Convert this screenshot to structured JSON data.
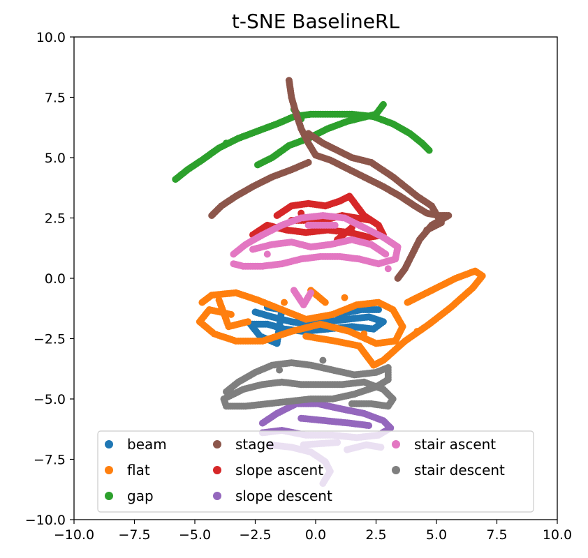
{
  "chart_data": {
    "type": "scatter",
    "title": "t-SNE BaselineRL",
    "xlabel": "",
    "ylabel": "",
    "xlim": [
      -10,
      10
    ],
    "ylim": [
      -10,
      10
    ],
    "xticks": [
      "−10.0",
      "−7.5",
      "−5.0",
      "−2.5",
      "0.0",
      "2.5",
      "5.0",
      "7.5",
      "10.0"
    ],
    "yticks": [
      "−10.0",
      "−7.5",
      "−5.0",
      "−2.5",
      "0.0",
      "2.5",
      "5.0",
      "7.5",
      "10.0"
    ],
    "grid": false,
    "legend_position": "lower center",
    "series": [
      {
        "name": "beam",
        "color": "#1f77b4",
        "points": [
          [
            -2.5,
            -1.4
          ],
          [
            -1.8,
            -1.6
          ],
          [
            -1.0,
            -1.8
          ],
          [
            -0.3,
            -1.9
          ],
          [
            0.5,
            -1.8
          ],
          [
            1.3,
            -1.7
          ],
          [
            2.2,
            -1.6
          ],
          [
            2.8,
            -1.8
          ],
          [
            2.4,
            -2.1
          ],
          [
            1.5,
            -2.0
          ],
          [
            0.5,
            -2.1
          ],
          [
            -0.5,
            -2.2
          ],
          [
            -1.3,
            -2.1
          ],
          [
            -2.0,
            -1.9
          ],
          [
            -2.7,
            -1.9
          ],
          [
            -2.3,
            -2.4
          ],
          [
            -1.6,
            -2.7
          ],
          [
            -1.4,
            -1.3
          ],
          [
            -2.0,
            -1.2
          ],
          [
            0.9,
            -1.5
          ],
          [
            1.9,
            -1.3
          ],
          [
            2.6,
            -1.3
          ]
        ]
      },
      {
        "name": "flat",
        "color": "#ff7f0e",
        "points": [
          [
            -4.7,
            -1.0
          ],
          [
            -4.3,
            -0.7
          ],
          [
            -3.3,
            -0.6
          ],
          [
            -2.4,
            -0.9
          ],
          [
            -1.4,
            -1.3
          ],
          [
            -0.4,
            -1.7
          ],
          [
            0.7,
            -1.5
          ],
          [
            1.7,
            -1.1
          ],
          [
            2.6,
            -1.0
          ],
          [
            3.2,
            -1.3
          ],
          [
            3.6,
            -2.0
          ],
          [
            3.3,
            -2.6
          ],
          [
            2.5,
            -2.7
          ],
          [
            1.4,
            -2.2
          ],
          [
            0.2,
            -1.9
          ],
          [
            -1.0,
            -2.2
          ],
          [
            -2.2,
            -2.6
          ],
          [
            -3.3,
            -2.6
          ],
          [
            -4.2,
            -2.3
          ],
          [
            -4.8,
            -1.8
          ],
          [
            -4.4,
            -1.3
          ],
          [
            -3.5,
            -1.5
          ],
          [
            -0.2,
            -0.5
          ],
          [
            0.4,
            -1.0
          ],
          [
            3.8,
            -1.0
          ],
          [
            4.8,
            -0.5
          ],
          [
            5.8,
            0.0
          ],
          [
            6.6,
            0.3
          ],
          [
            6.9,
            0.1
          ],
          [
            6.5,
            -0.4
          ],
          [
            5.6,
            -1.2
          ],
          [
            4.7,
            -1.9
          ],
          [
            3.7,
            -2.6
          ],
          [
            2.8,
            -3.4
          ],
          [
            2.4,
            -3.6
          ],
          [
            1.8,
            -2.8
          ],
          [
            0.8,
            -2.6
          ],
          [
            -0.4,
            -2.4
          ],
          [
            -1.3,
            -1.0
          ],
          [
            1.2,
            -0.8
          ],
          [
            -2.8,
            -1.8
          ],
          [
            -3.6,
            -2.0
          ],
          [
            -4.0,
            -0.9
          ],
          [
            2.0,
            -2.3
          ],
          [
            4.2,
            -2.2
          ]
        ]
      },
      {
        "name": "gap",
        "color": "#2ca02c",
        "points": [
          [
            -5.8,
            4.1
          ],
          [
            -5.3,
            4.5
          ],
          [
            -4.7,
            4.9
          ],
          [
            -4.0,
            5.4
          ],
          [
            -3.2,
            5.8
          ],
          [
            -2.4,
            6.1
          ],
          [
            -1.6,
            6.4
          ],
          [
            -0.9,
            6.7
          ],
          [
            -0.2,
            6.8
          ],
          [
            0.7,
            6.8
          ],
          [
            1.5,
            6.8
          ],
          [
            2.4,
            6.7
          ],
          [
            3.2,
            6.4
          ],
          [
            3.9,
            6.0
          ],
          [
            4.4,
            5.6
          ],
          [
            4.7,
            5.3
          ],
          [
            2.8,
            7.2
          ],
          [
            2.5,
            6.8
          ],
          [
            1.3,
            6.5
          ],
          [
            0.5,
            6.2
          ],
          [
            -0.3,
            5.8
          ],
          [
            -1.1,
            5.5
          ],
          [
            -1.8,
            5.0
          ],
          [
            -2.4,
            4.7
          ],
          [
            -0.9,
            7.0
          ],
          [
            -0.6,
            6.6
          ],
          [
            1.9,
            6.7
          ],
          [
            -3.7,
            5.6
          ]
        ]
      },
      {
        "name": "stage",
        "color": "#8c564b",
        "points": [
          [
            -1.1,
            8.2
          ],
          [
            -1.0,
            7.5
          ],
          [
            -0.8,
            6.8
          ],
          [
            -0.6,
            6.2
          ],
          [
            -0.3,
            5.6
          ],
          [
            0.0,
            5.1
          ],
          [
            0.6,
            4.9
          ],
          [
            1.2,
            4.6
          ],
          [
            2.0,
            4.2
          ],
          [
            2.8,
            3.8
          ],
          [
            3.5,
            3.4
          ],
          [
            4.1,
            3.0
          ],
          [
            4.6,
            2.7
          ],
          [
            5.1,
            2.6
          ],
          [
            5.5,
            2.6
          ],
          [
            4.8,
            2.2
          ],
          [
            4.3,
            1.6
          ],
          [
            4.0,
            1.0
          ],
          [
            3.7,
            0.4
          ],
          [
            3.4,
            0.0
          ],
          [
            -0.3,
            4.8
          ],
          [
            -1.0,
            4.5
          ],
          [
            -1.8,
            4.2
          ],
          [
            -2.6,
            3.8
          ],
          [
            -3.3,
            3.4
          ],
          [
            -3.9,
            3.0
          ],
          [
            -4.3,
            2.6
          ],
          [
            -0.3,
            6.0
          ],
          [
            0.3,
            5.6
          ],
          [
            0.9,
            5.3
          ],
          [
            1.5,
            5.0
          ],
          [
            2.3,
            4.8
          ],
          [
            3.2,
            4.2
          ],
          [
            4.2,
            3.4
          ],
          [
            4.8,
            3.0
          ],
          [
            5.2,
            2.3
          ],
          [
            4.6,
            2.0
          ]
        ]
      },
      {
        "name": "slope ascent",
        "color": "#d62728",
        "points": [
          [
            -1.6,
            2.6
          ],
          [
            -1.0,
            3.0
          ],
          [
            -0.3,
            3.1
          ],
          [
            0.4,
            3.0
          ],
          [
            1.0,
            3.2
          ],
          [
            1.4,
            3.4
          ],
          [
            1.7,
            3.0
          ],
          [
            2.0,
            2.6
          ],
          [
            2.6,
            2.2
          ],
          [
            2.8,
            1.8
          ],
          [
            2.2,
            1.7
          ],
          [
            1.4,
            1.9
          ],
          [
            0.5,
            2.0
          ],
          [
            -0.4,
            1.9
          ],
          [
            -1.2,
            2.0
          ],
          [
            -2.0,
            2.2
          ],
          [
            -2.6,
            1.8
          ],
          [
            -1.0,
            2.4
          ],
          [
            0.3,
            2.4
          ],
          [
            1.1,
            2.6
          ],
          [
            2.3,
            2.4
          ],
          [
            -0.6,
            2.7
          ],
          [
            1.5,
            2.1
          ],
          [
            0.9,
            1.6
          ]
        ]
      },
      {
        "name": "slope descent",
        "color": "#9467bd",
        "points": [
          [
            -2.2,
            -6.0
          ],
          [
            -1.6,
            -5.6
          ],
          [
            -0.8,
            -5.2
          ],
          [
            0.1,
            -5.2
          ],
          [
            1.0,
            -5.4
          ],
          [
            2.0,
            -5.6
          ],
          [
            2.8,
            -5.9
          ],
          [
            3.1,
            -6.2
          ],
          [
            2.6,
            -6.5
          ],
          [
            1.7,
            -6.6
          ],
          [
            0.7,
            -6.5
          ],
          [
            -0.4,
            -6.5
          ],
          [
            -1.4,
            -6.3
          ],
          [
            -2.2,
            -6.4
          ],
          [
            -0.6,
            -5.8
          ],
          [
            0.4,
            -5.9
          ],
          [
            1.4,
            -6.0
          ],
          [
            2.2,
            -6.1
          ],
          [
            -1.9,
            -6.9
          ],
          [
            -1.0,
            -7.0
          ],
          [
            -0.2,
            -7.2
          ],
          [
            0.4,
            -7.6
          ],
          [
            0.6,
            -8.0
          ],
          [
            0.3,
            -8.5
          ],
          [
            1.3,
            -7.1
          ],
          [
            2.1,
            -6.9
          ],
          [
            2.7,
            -7.0
          ],
          [
            -0.5,
            -6.9
          ],
          [
            0.9,
            -6.8
          ]
        ]
      },
      {
        "name": "stair ascent",
        "color": "#e377c2",
        "points": [
          [
            -3.4,
            1.0
          ],
          [
            -2.9,
            1.4
          ],
          [
            -2.2,
            1.8
          ],
          [
            -1.4,
            2.2
          ],
          [
            -0.6,
            2.5
          ],
          [
            0.3,
            2.6
          ],
          [
            1.2,
            2.5
          ],
          [
            2.0,
            2.1
          ],
          [
            2.8,
            1.7
          ],
          [
            3.4,
            1.3
          ],
          [
            3.3,
            0.8
          ],
          [
            2.6,
            0.6
          ],
          [
            1.8,
            0.8
          ],
          [
            1.0,
            0.9
          ],
          [
            0.2,
            0.9
          ],
          [
            -0.6,
            0.8
          ],
          [
            -1.4,
            0.6
          ],
          [
            -2.2,
            0.5
          ],
          [
            -3.0,
            0.5
          ],
          [
            -3.4,
            0.6
          ],
          [
            -0.9,
            -0.5
          ],
          [
            -0.5,
            -1.1
          ],
          [
            -0.2,
            -0.6
          ],
          [
            -2.6,
            1.2
          ],
          [
            -1.8,
            1.4
          ],
          [
            -1.0,
            1.5
          ],
          [
            -0.2,
            1.3
          ],
          [
            0.6,
            1.4
          ],
          [
            1.5,
            1.6
          ],
          [
            2.3,
            1.4
          ],
          [
            2.9,
            1.0
          ],
          [
            0.8,
            2.2
          ],
          [
            -0.3,
            2.2
          ],
          [
            3.0,
            0.4
          ],
          [
            -2.0,
            1.0
          ]
        ]
      },
      {
        "name": "stair descent",
        "color": "#7f7f7f",
        "points": [
          [
            -3.7,
            -4.7
          ],
          [
            -3.2,
            -4.3
          ],
          [
            -2.5,
            -3.9
          ],
          [
            -1.8,
            -3.6
          ],
          [
            -1.0,
            -3.5
          ],
          [
            -0.2,
            -3.6
          ],
          [
            0.7,
            -3.8
          ],
          [
            1.6,
            -4.0
          ],
          [
            2.5,
            -3.9
          ],
          [
            3.0,
            -3.7
          ],
          [
            3.0,
            -4.2
          ],
          [
            2.5,
            -4.5
          ],
          [
            1.6,
            -4.8
          ],
          [
            0.7,
            -5.0
          ],
          [
            -0.2,
            -5.0
          ],
          [
            -1.1,
            -5.1
          ],
          [
            -2.0,
            -5.2
          ],
          [
            -2.9,
            -5.3
          ],
          [
            -3.7,
            -5.3
          ],
          [
            -3.8,
            -5.0
          ],
          [
            -3.0,
            -4.6
          ],
          [
            -2.2,
            -4.4
          ],
          [
            -1.4,
            -4.3
          ],
          [
            -0.6,
            -4.4
          ],
          [
            0.3,
            -4.4
          ],
          [
            1.1,
            -4.4
          ],
          [
            2.0,
            -4.3
          ],
          [
            2.8,
            -4.6
          ],
          [
            3.2,
            -5.0
          ],
          [
            3.0,
            -5.3
          ],
          [
            2.3,
            -5.2
          ],
          [
            1.5,
            -5.2
          ],
          [
            0.3,
            -3.4
          ],
          [
            -1.5,
            -3.8
          ]
        ]
      }
    ]
  }
}
